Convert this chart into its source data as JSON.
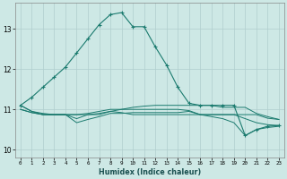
{
  "xlabel": "Humidex (Indice chaleur)",
  "xlim": [
    -0.5,
    23.5
  ],
  "ylim": [
    9.8,
    13.65
  ],
  "yticks": [
    10,
    11,
    12,
    13
  ],
  "xticks": [
    0,
    1,
    2,
    3,
    4,
    5,
    6,
    7,
    8,
    9,
    10,
    11,
    12,
    13,
    14,
    15,
    16,
    17,
    18,
    19,
    20,
    21,
    22,
    23
  ],
  "background_color": "#cde8e5",
  "grid_color": "#b0cece",
  "line_color": "#1a7a6e",
  "series_main": [
    11.1,
    11.3,
    11.55,
    11.8,
    12.05,
    12.4,
    12.75,
    13.1,
    13.35,
    13.4,
    13.05,
    13.05,
    12.55,
    12.1,
    11.55,
    11.15,
    11.1,
    11.1,
    11.1,
    11.1,
    10.35,
    10.5,
    10.58,
    10.6
  ],
  "series_flat": [
    [
      11.1,
      10.95,
      10.87,
      10.87,
      10.87,
      10.87,
      10.87,
      10.87,
      10.95,
      11.0,
      11.05,
      11.08,
      11.1,
      11.1,
      11.1,
      11.1,
      11.1,
      11.1,
      11.05,
      11.05,
      11.05,
      10.9,
      10.82,
      10.75
    ],
    [
      11.0,
      10.92,
      10.87,
      10.87,
      10.87,
      10.67,
      10.75,
      10.82,
      10.9,
      10.9,
      10.92,
      10.92,
      10.92,
      10.92,
      10.92,
      10.95,
      10.87,
      10.87,
      10.87,
      10.87,
      10.87,
      10.87,
      10.78,
      10.75
    ],
    [
      11.0,
      10.92,
      10.87,
      10.87,
      10.87,
      10.77,
      10.87,
      10.9,
      10.95,
      10.92,
      10.87,
      10.87,
      10.87,
      10.87,
      10.87,
      10.87,
      10.87,
      10.87,
      10.87,
      10.87,
      10.77,
      10.67,
      10.62,
      10.6
    ],
    [
      11.1,
      10.95,
      10.9,
      10.87,
      10.87,
      10.87,
      10.9,
      10.95,
      11.0,
      11.0,
      11.0,
      11.0,
      11.0,
      11.0,
      11.0,
      10.97,
      10.87,
      10.82,
      10.77,
      10.67,
      10.35,
      10.5,
      10.55,
      10.58
    ]
  ]
}
